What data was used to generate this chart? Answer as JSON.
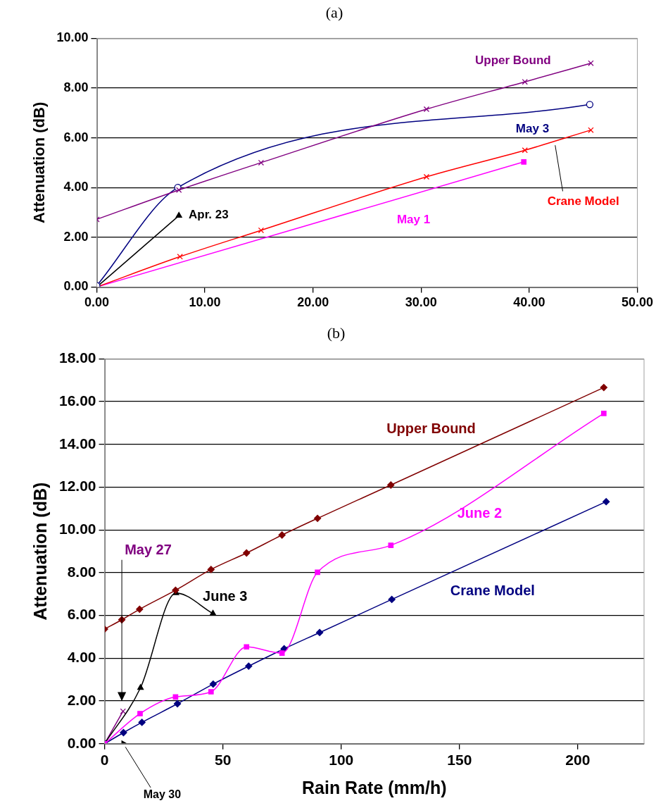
{
  "chart_data": [
    {
      "type": "line",
      "title": "(a)",
      "ylabel": "Attenuation (dB)",
      "xlim": [
        0,
        50
      ],
      "ylim": [
        0,
        10
      ],
      "xticks": [
        {
          "value": 0,
          "label": "0.00"
        },
        {
          "value": 10,
          "label": "10.00"
        },
        {
          "value": 20,
          "label": "20.00"
        },
        {
          "value": 30,
          "label": "30.00"
        },
        {
          "value": 40,
          "label": "40.00"
        },
        {
          "value": 50,
          "label": "50.00"
        }
      ],
      "yticks": [
        {
          "value": 0,
          "label": "0.00"
        },
        {
          "value": 2,
          "label": "2.00"
        },
        {
          "value": 4,
          "label": "4.00"
        },
        {
          "value": 6,
          "label": "6.00"
        },
        {
          "value": 8,
          "label": "8.00"
        },
        {
          "value": 10,
          "label": "10.00"
        }
      ],
      "grid": "y",
      "series": [
        {
          "name": "Upper Bound",
          "color": "#800080",
          "marker": "cross",
          "x": [
            0,
            7.6,
            15.2,
            30.5,
            39.6,
            45.7
          ],
          "values": [
            2.72,
            3.9,
            5.0,
            7.15,
            8.25,
            9.0
          ]
        },
        {
          "name": "May 3",
          "color": "#000080",
          "marker": "circle",
          "x": [
            0,
            7.5,
            45.6
          ],
          "values": [
            0.05,
            4.0,
            7.34
          ]
        },
        {
          "name": "Crane Model",
          "color": "#ff0000",
          "marker": "cross",
          "x": [
            0,
            7.7,
            15.2,
            30.5,
            39.6,
            45.7
          ],
          "values": [
            0,
            1.22,
            2.28,
            4.43,
            5.5,
            6.31
          ]
        },
        {
          "name": "May 1",
          "color": "#ff00ff",
          "marker": "square",
          "x": [
            0,
            39.5
          ],
          "values": [
            0,
            5.03
          ]
        },
        {
          "name": "Apr. 23",
          "color": "#000000",
          "marker": "triangle",
          "x": [
            0,
            7.6
          ],
          "values": [
            0,
            2.87
          ]
        }
      ]
    },
    {
      "type": "line",
      "title": "(b)",
      "xlabel": "Rain Rate (mm/h)",
      "ylabel": "Attenuation (dB)",
      "xlim": [
        0,
        228
      ],
      "ylim": [
        0,
        18
      ],
      "xticks": [
        0,
        50,
        100,
        150,
        200
      ],
      "yticks": [
        {
          "value": 0,
          "label": "0.00"
        },
        {
          "value": 2,
          "label": "2.00"
        },
        {
          "value": 4,
          "label": "4.00"
        },
        {
          "value": 6,
          "label": "6.00"
        },
        {
          "value": 8,
          "label": "8.00"
        },
        {
          "value": 10,
          "label": "10.00"
        },
        {
          "value": 12,
          "label": "12.00"
        },
        {
          "value": 14,
          "label": "14.00"
        },
        {
          "value": 16,
          "label": "16.00"
        },
        {
          "value": 18,
          "label": "18.00"
        }
      ],
      "grid": "y",
      "series": [
        {
          "name": "Upper Bound",
          "color": "#800000",
          "marker": "diamond",
          "x": [
            0,
            7.3,
            14.8,
            30,
            45,
            60,
            75,
            90,
            121,
            211
          ],
          "values": [
            5.36,
            5.8,
            6.29,
            7.18,
            8.15,
            8.92,
            9.76,
            10.54,
            12.1,
            16.66
          ]
        },
        {
          "name": "June 2",
          "color": "#ff00ff",
          "marker": "square",
          "x": [
            0,
            15,
            30,
            45,
            60,
            75,
            90,
            121,
            211
          ],
          "values": [
            0,
            1.41,
            2.19,
            2.43,
            4.53,
            4.24,
            8.02,
            9.28,
            15.45
          ]
        },
        {
          "name": "Crane Model",
          "color": "#000080",
          "marker": "diamond",
          "x": [
            0,
            8,
            15.8,
            30.8,
            45.9,
            60.9,
            75.9,
            90.9,
            121.4,
            212
          ],
          "values": [
            0,
            0.52,
            1.0,
            1.87,
            2.79,
            3.63,
            4.44,
            5.2,
            6.75,
            11.32
          ]
        },
        {
          "name": "June 3",
          "color": "#000000",
          "marker": "triangle",
          "x": [
            0,
            15.2,
            30.2,
            45.8
          ],
          "values": [
            0,
            2.62,
            7.05,
            6.09
          ]
        },
        {
          "name": "May 27",
          "color": "#800080",
          "marker": "cross",
          "x": [
            0,
            7.8
          ],
          "values": [
            0,
            1.52
          ]
        },
        {
          "name": "May 30",
          "type": "scatter",
          "color": "#000000",
          "marker": "triangle",
          "x": [
            8
          ],
          "values": [
            0
          ]
        }
      ]
    }
  ]
}
